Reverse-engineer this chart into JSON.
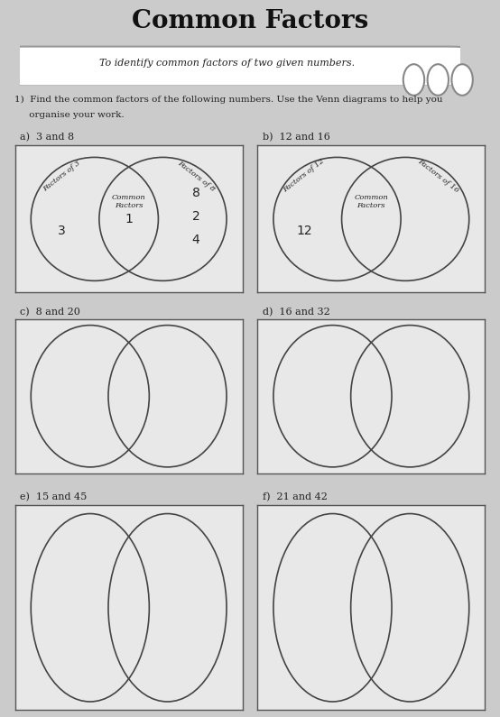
{
  "title": "Common Factors",
  "objective_text": "To identify common factors of two given numbers.",
  "instruction_1": "1)  Find the common factors of the following numbers. Use the Venn diagrams to help you",
  "instruction_2": "     organise your work.",
  "subproblems": [
    {
      "label": "a)  3 and 8",
      "left_label": "Factors of 3",
      "right_label": "Factors of 8",
      "middle_label": "Common\nFactors",
      "left_vals": [
        "3"
      ],
      "middle_vals": [
        "1"
      ],
      "right_vals": [
        "8",
        "2",
        "4"
      ],
      "has_labels": true,
      "style": "round"
    },
    {
      "label": "b)  12 and 16",
      "left_label": "Factors of 12",
      "right_label": "Factors of 16",
      "middle_label": "Common\nFactors",
      "left_vals": [
        "12"
      ],
      "middle_vals": [],
      "right_vals": [],
      "has_labels": true,
      "style": "round"
    },
    {
      "label": "c)  8 and 20",
      "left_label": "",
      "right_label": "",
      "middle_label": "",
      "left_vals": [],
      "middle_vals": [],
      "right_vals": [],
      "has_labels": false,
      "style": "tall"
    },
    {
      "label": "d)  16 and 32",
      "left_label": "",
      "right_label": "",
      "middle_label": "",
      "left_vals": [],
      "middle_vals": [],
      "right_vals": [],
      "has_labels": false,
      "style": "tall"
    },
    {
      "label": "e)  15 and 45",
      "left_label": "",
      "right_label": "",
      "middle_label": "",
      "left_vals": [],
      "middle_vals": [],
      "right_vals": [],
      "has_labels": false,
      "style": "tall"
    },
    {
      "label": "f)  21 and 42",
      "left_label": "",
      "right_label": "",
      "middle_label": "",
      "left_vals": [],
      "middle_vals": [],
      "right_vals": [],
      "has_labels": false,
      "style": "tall"
    }
  ],
  "bg_color": "#cbcbcb",
  "paper_color": "#e8e8e8",
  "box_color": "#e8e8e8",
  "circle_edge": "#444444",
  "text_color": "#222222",
  "title_color": "#111111"
}
